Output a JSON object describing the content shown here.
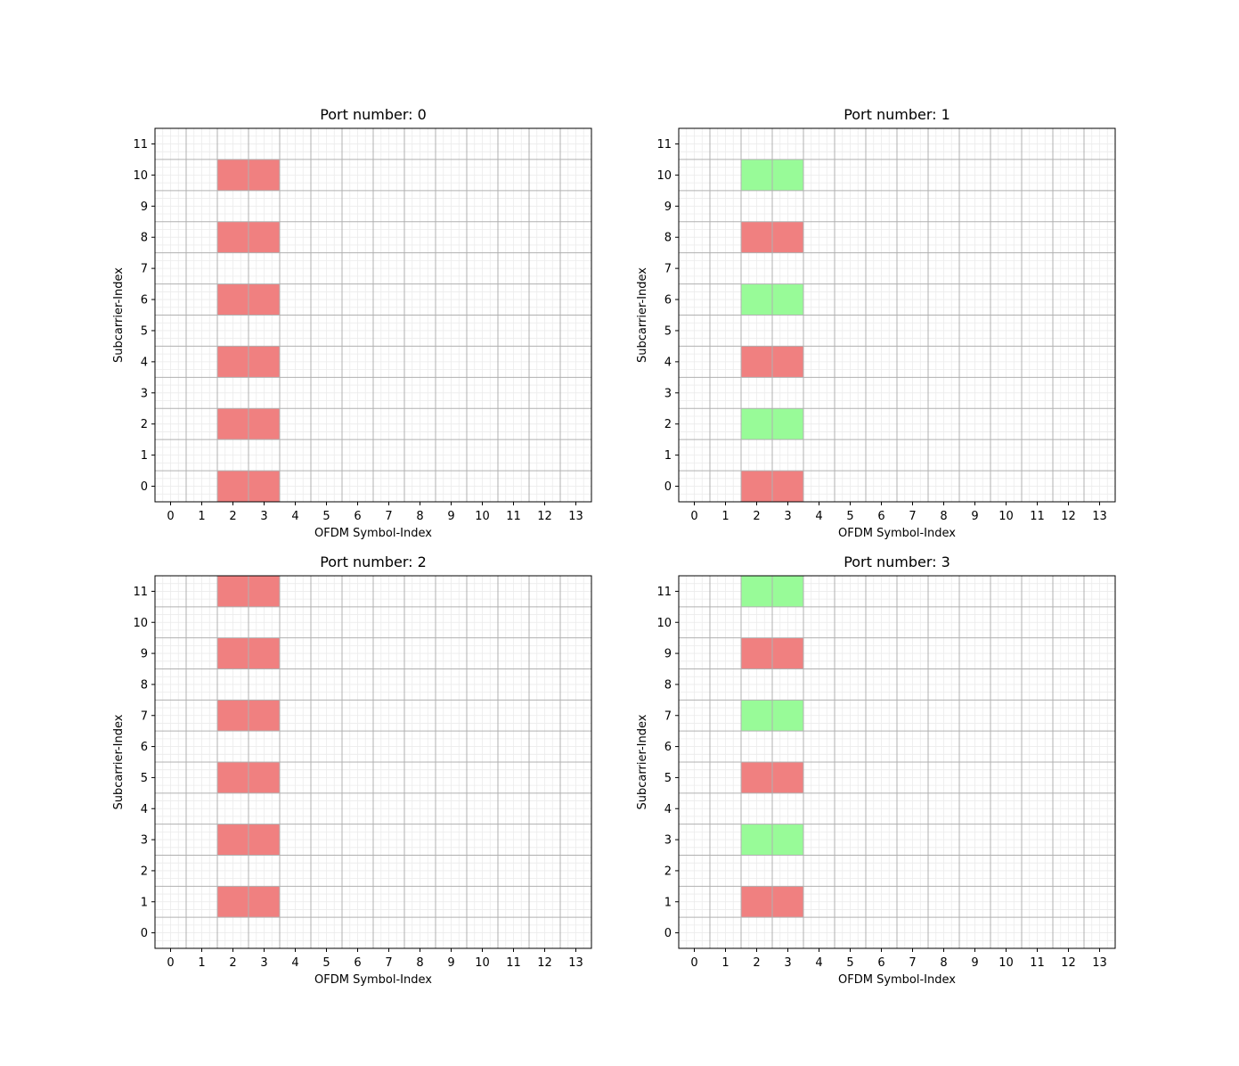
{
  "chart_data": [
    {
      "type": "heatmap",
      "title": "Port number: 0",
      "xlabel": "OFDM Symbol-Index",
      "ylabel": "Subcarrier-Index",
      "x_ticks": [
        0,
        1,
        2,
        3,
        4,
        5,
        6,
        7,
        8,
        9,
        10,
        11,
        12,
        13
      ],
      "y_ticks": [
        0,
        1,
        2,
        3,
        4,
        5,
        6,
        7,
        8,
        9,
        10,
        11
      ],
      "xlim": [
        -0.5,
        13.5
      ],
      "ylim": [
        -0.5,
        11.5
      ],
      "grid": true,
      "cells": [
        {
          "symbol": 2,
          "subcarrier": 0,
          "color": "#f08080"
        },
        {
          "symbol": 3,
          "subcarrier": 0,
          "color": "#f08080"
        },
        {
          "symbol": 2,
          "subcarrier": 2,
          "color": "#f08080"
        },
        {
          "symbol": 3,
          "subcarrier": 2,
          "color": "#f08080"
        },
        {
          "symbol": 2,
          "subcarrier": 4,
          "color": "#f08080"
        },
        {
          "symbol": 3,
          "subcarrier": 4,
          "color": "#f08080"
        },
        {
          "symbol": 2,
          "subcarrier": 6,
          "color": "#f08080"
        },
        {
          "symbol": 3,
          "subcarrier": 6,
          "color": "#f08080"
        },
        {
          "symbol": 2,
          "subcarrier": 8,
          "color": "#f08080"
        },
        {
          "symbol": 3,
          "subcarrier": 8,
          "color": "#f08080"
        },
        {
          "symbol": 2,
          "subcarrier": 10,
          "color": "#f08080"
        },
        {
          "symbol": 3,
          "subcarrier": 10,
          "color": "#f08080"
        }
      ]
    },
    {
      "type": "heatmap",
      "title": "Port number: 1",
      "xlabel": "OFDM Symbol-Index",
      "ylabel": "Subcarrier-Index",
      "x_ticks": [
        0,
        1,
        2,
        3,
        4,
        5,
        6,
        7,
        8,
        9,
        10,
        11,
        12,
        13
      ],
      "y_ticks": [
        0,
        1,
        2,
        3,
        4,
        5,
        6,
        7,
        8,
        9,
        10,
        11
      ],
      "xlim": [
        -0.5,
        13.5
      ],
      "ylim": [
        -0.5,
        11.5
      ],
      "grid": true,
      "cells": [
        {
          "symbol": 2,
          "subcarrier": 0,
          "color": "#f08080"
        },
        {
          "symbol": 3,
          "subcarrier": 0,
          "color": "#f08080"
        },
        {
          "symbol": 2,
          "subcarrier": 2,
          "color": "#98fb98"
        },
        {
          "symbol": 3,
          "subcarrier": 2,
          "color": "#98fb98"
        },
        {
          "symbol": 2,
          "subcarrier": 4,
          "color": "#f08080"
        },
        {
          "symbol": 3,
          "subcarrier": 4,
          "color": "#f08080"
        },
        {
          "symbol": 2,
          "subcarrier": 6,
          "color": "#98fb98"
        },
        {
          "symbol": 3,
          "subcarrier": 6,
          "color": "#98fb98"
        },
        {
          "symbol": 2,
          "subcarrier": 8,
          "color": "#f08080"
        },
        {
          "symbol": 3,
          "subcarrier": 8,
          "color": "#f08080"
        },
        {
          "symbol": 2,
          "subcarrier": 10,
          "color": "#98fb98"
        },
        {
          "symbol": 3,
          "subcarrier": 10,
          "color": "#98fb98"
        }
      ]
    },
    {
      "type": "heatmap",
      "title": "Port number: 2",
      "xlabel": "OFDM Symbol-Index",
      "ylabel": "Subcarrier-Index",
      "x_ticks": [
        0,
        1,
        2,
        3,
        4,
        5,
        6,
        7,
        8,
        9,
        10,
        11,
        12,
        13
      ],
      "y_ticks": [
        0,
        1,
        2,
        3,
        4,
        5,
        6,
        7,
        8,
        9,
        10,
        11
      ],
      "xlim": [
        -0.5,
        13.5
      ],
      "ylim": [
        -0.5,
        11.5
      ],
      "grid": true,
      "cells": [
        {
          "symbol": 2,
          "subcarrier": 1,
          "color": "#f08080"
        },
        {
          "symbol": 3,
          "subcarrier": 1,
          "color": "#f08080"
        },
        {
          "symbol": 2,
          "subcarrier": 3,
          "color": "#f08080"
        },
        {
          "symbol": 3,
          "subcarrier": 3,
          "color": "#f08080"
        },
        {
          "symbol": 2,
          "subcarrier": 5,
          "color": "#f08080"
        },
        {
          "symbol": 3,
          "subcarrier": 5,
          "color": "#f08080"
        },
        {
          "symbol": 2,
          "subcarrier": 7,
          "color": "#f08080"
        },
        {
          "symbol": 3,
          "subcarrier": 7,
          "color": "#f08080"
        },
        {
          "symbol": 2,
          "subcarrier": 9,
          "color": "#f08080"
        },
        {
          "symbol": 3,
          "subcarrier": 9,
          "color": "#f08080"
        },
        {
          "symbol": 2,
          "subcarrier": 11,
          "color": "#f08080"
        },
        {
          "symbol": 3,
          "subcarrier": 11,
          "color": "#f08080"
        }
      ]
    },
    {
      "type": "heatmap",
      "title": "Port number: 3",
      "xlabel": "OFDM Symbol-Index",
      "ylabel": "Subcarrier-Index",
      "x_ticks": [
        0,
        1,
        2,
        3,
        4,
        5,
        6,
        7,
        8,
        9,
        10,
        11,
        12,
        13
      ],
      "y_ticks": [
        0,
        1,
        2,
        3,
        4,
        5,
        6,
        7,
        8,
        9,
        10,
        11
      ],
      "xlim": [
        -0.5,
        13.5
      ],
      "ylim": [
        -0.5,
        11.5
      ],
      "grid": true,
      "cells": [
        {
          "symbol": 2,
          "subcarrier": 1,
          "color": "#f08080"
        },
        {
          "symbol": 3,
          "subcarrier": 1,
          "color": "#f08080"
        },
        {
          "symbol": 2,
          "subcarrier": 3,
          "color": "#98fb98"
        },
        {
          "symbol": 3,
          "subcarrier": 3,
          "color": "#98fb98"
        },
        {
          "symbol": 2,
          "subcarrier": 5,
          "color": "#f08080"
        },
        {
          "symbol": 3,
          "subcarrier": 5,
          "color": "#f08080"
        },
        {
          "symbol": 2,
          "subcarrier": 7,
          "color": "#98fb98"
        },
        {
          "symbol": 3,
          "subcarrier": 7,
          "color": "#98fb98"
        },
        {
          "symbol": 2,
          "subcarrier": 9,
          "color": "#f08080"
        },
        {
          "symbol": 3,
          "subcarrier": 9,
          "color": "#f08080"
        },
        {
          "symbol": 2,
          "subcarrier": 11,
          "color": "#98fb98"
        },
        {
          "symbol": 3,
          "subcarrier": 11,
          "color": "#98fb98"
        }
      ]
    }
  ]
}
